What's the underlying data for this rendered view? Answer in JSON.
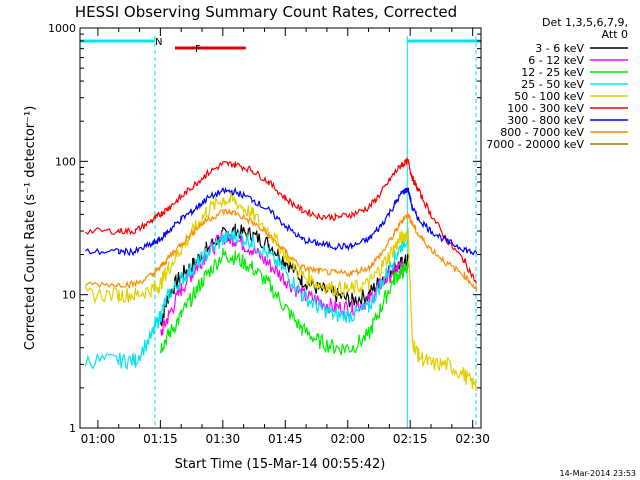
{
  "colors": {
    "background": "#ffffff",
    "axis": "#000000",
    "cyan": "#00e5ee",
    "flare": "#e00000"
  },
  "chart_data": {
    "type": "line",
    "title": "HESSI Observing Summary Count Rates, Corrected",
    "xlabel": "Start Time (15-Mar-14 00:55:42)",
    "ylabel": "Corrected Count Rate (s⁻¹ detector⁻¹)",
    "yscale": "log",
    "ylim": [
      1,
      1000
    ],
    "y_ticks": [
      "1",
      "10",
      "100",
      "1000"
    ],
    "xlim_minutes_after_00_55": [
      0.7,
      97
    ],
    "x_ticks": [
      {
        "label": "01:00",
        "minute": 5
      },
      {
        "label": "01:15",
        "minute": 20
      },
      {
        "label": "01:30",
        "minute": 35
      },
      {
        "label": "01:45",
        "minute": 50
      },
      {
        "label": "02:00",
        "minute": 65
      },
      {
        "label": "02:15",
        "minute": 80
      },
      {
        "label": "02:30",
        "minute": 95
      }
    ],
    "legend": {
      "header_line1": "Det 1,3,5,6,7,9,",
      "header_line2": "Att 0",
      "placement": "right"
    },
    "annotations": {
      "night_label": "N",
      "flare_label": "F",
      "footer_timestamp": "14-Mar-2014 23:53"
    },
    "night_intervals_minutes": [
      [
        0.7,
        18.7
      ],
      [
        79.3,
        97
      ]
    ],
    "saa_boundaries_minutes": [
      18.7,
      79.3,
      95.8
    ],
    "flare_interval_minutes": [
      23.5,
      40.5
    ],
    "time_minutes": [
      2,
      10,
      14,
      18,
      20,
      22,
      25,
      28,
      31,
      35,
      38,
      42,
      46,
      50,
      54,
      58,
      62,
      66,
      70,
      73,
      76,
      78,
      79.5,
      80.5,
      82,
      85,
      89,
      93,
      96
    ],
    "series": [
      {
        "name": "3 - 6 keV",
        "color": "#000000",
        "start_index": 4,
        "end_index": 22,
        "values": [
          null,
          null,
          null,
          null,
          6,
          10,
          14,
          17,
          22,
          28,
          30,
          28,
          24,
          18,
          13,
          11,
          10,
          9,
          10,
          13,
          16,
          17,
          18,
          null,
          null,
          null,
          null,
          null,
          null
        ]
      },
      {
        "name": "6 - 12 keV",
        "color": "#ff00ff",
        "start_index": 4,
        "end_index": 22,
        "values": [
          null,
          null,
          null,
          null,
          5,
          7,
          11,
          15,
          20,
          27,
          26,
          22,
          17,
          13,
          10,
          9,
          8,
          8,
          9,
          12,
          15,
          16,
          17,
          null,
          null,
          null,
          null,
          null,
          null
        ]
      },
      {
        "name": "12 - 25 keV",
        "color": "#00ee00",
        "start_index": 4,
        "end_index": 22,
        "values": [
          null,
          null,
          null,
          null,
          4,
          5,
          7,
          10,
          14,
          20,
          19,
          16,
          12,
          8,
          5.5,
          4.5,
          4,
          4,
          5,
          8,
          13,
          15,
          16,
          null,
          null,
          null,
          null,
          null,
          null
        ]
      },
      {
        "name": "25 - 50 keV",
        "color": "#00e5ee",
        "values": [
          3.2,
          3.2,
          3.2,
          5,
          7,
          10,
          13,
          16,
          20,
          26,
          28,
          25,
          20,
          15,
          10,
          8,
          7,
          7,
          8,
          12,
          18,
          24,
          27,
          null,
          null,
          null,
          null,
          null,
          null
        ]
      },
      {
        "name": "50 - 100 keV",
        "color": "#e0d000",
        "values": [
          10,
          10,
          10,
          11,
          12,
          16,
          22,
          30,
          42,
          52,
          50,
          40,
          30,
          20,
          14,
          12,
          11,
          11,
          12,
          16,
          22,
          27,
          29,
          4.5,
          3.5,
          3,
          3,
          2.5,
          2
        ]
      },
      {
        "name": "100 - 300 keV",
        "color": "#ff0000",
        "values": [
          30,
          30,
          30,
          36,
          40,
          45,
          54,
          66,
          80,
          96,
          95,
          86,
          70,
          53,
          43,
          39,
          38,
          40,
          45,
          58,
          80,
          95,
          100,
          75,
          60,
          40,
          25,
          18,
          12
        ]
      },
      {
        "name": "300 - 800 keV",
        "color": "#0000ff",
        "values": [
          21,
          21,
          21,
          24,
          26,
          30,
          37,
          43,
          52,
          60,
          59,
          52,
          43,
          33,
          26,
          24,
          23,
          23,
          26,
          33,
          46,
          58,
          62,
          45,
          37,
          30,
          25,
          22,
          20
        ]
      },
      {
        "name": "800 - 7000 keV",
        "color": "#ff8c00",
        "values": [
          12,
          12,
          12,
          14,
          16,
          19,
          24,
          30,
          36,
          42,
          41,
          35,
          28,
          21,
          16,
          15,
          14.5,
          14.5,
          16,
          20,
          28,
          36,
          40,
          34,
          28,
          22,
          17,
          14,
          11
        ]
      },
      {
        "name": "7000 - 20000 keV",
        "color": "#8b7a00",
        "values": [
          null,
          null,
          null,
          null,
          null,
          null,
          null,
          null,
          null,
          null,
          null,
          null,
          null,
          null,
          null,
          null,
          null,
          null,
          null,
          null,
          null,
          null,
          null,
          null,
          null,
          null,
          null,
          null,
          null
        ]
      }
    ]
  }
}
